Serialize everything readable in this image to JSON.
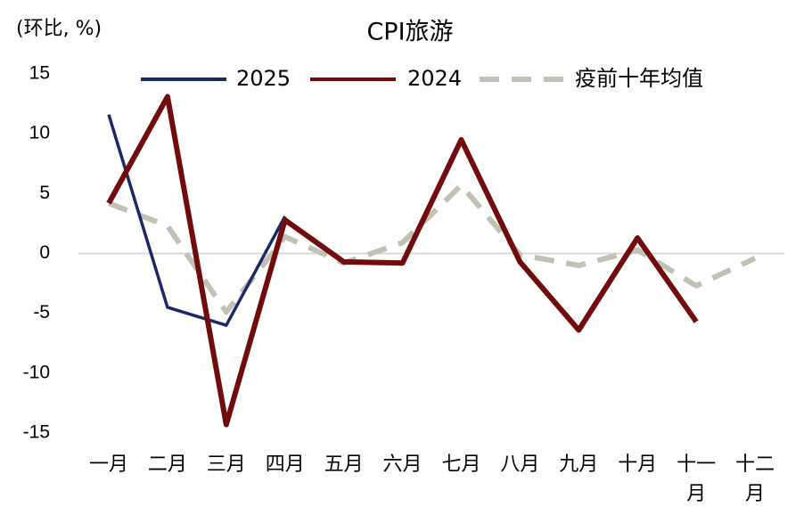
{
  "chart_data": {
    "type": "line",
    "title": "CPI旅游",
    "y_label": "(环比, %)",
    "categories": [
      "一月",
      "二月",
      "三月",
      "四月",
      "五月",
      "六月",
      "七月",
      "八月",
      "九月",
      "十月",
      "十一月",
      "十二月"
    ],
    "series": [
      {
        "name": "2025",
        "color": "#1b2a66",
        "dashed": false,
        "values": [
          11.6,
          -4.5,
          -6.0,
          3.1,
          null,
          null,
          null,
          null,
          null,
          null,
          null,
          null
        ]
      },
      {
        "name": "2024",
        "color": "#720b0b",
        "dashed": false,
        "values": [
          4.2,
          13.1,
          -14.3,
          2.8,
          -0.7,
          -0.8,
          9.5,
          -0.7,
          -6.4,
          1.3,
          -5.7,
          null
        ]
      },
      {
        "name": "疫前十年均值",
        "color": "#c2c1b3",
        "dashed": true,
        "values": [
          4.2,
          2.3,
          -4.9,
          1.4,
          -0.8,
          0.9,
          5.7,
          -0.1,
          -1.0,
          0.3,
          -2.7,
          -0.4
        ]
      }
    ],
    "ylim": [
      -15,
      15
    ],
    "yticks": [
      -15,
      -10,
      -5,
      0,
      5,
      10,
      15
    ]
  }
}
